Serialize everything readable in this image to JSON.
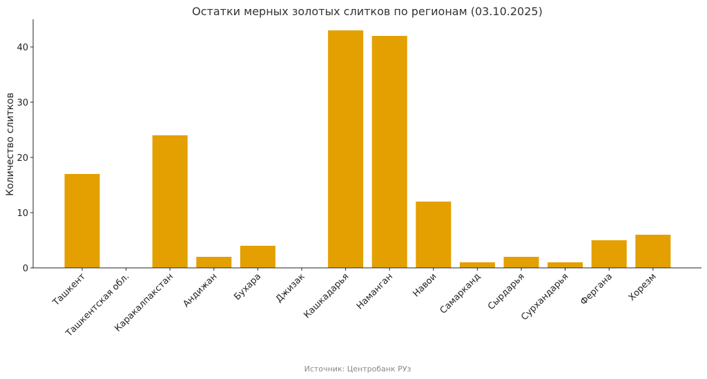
{
  "chart_data": {
    "type": "bar",
    "title": "Остатки мерных золотых слитков по регионам (03.10.2025)",
    "xlabel": "",
    "ylabel": "Количество слитков",
    "categories": [
      "Ташкент",
      "Ташкентская обл.",
      "Каракалпакстан",
      "Андижан",
      "Бухара",
      "Джизак",
      "Кашкадарья",
      "Наманган",
      "Навои",
      "Самарканд",
      "Сырдарья",
      "Сурхандарья",
      "Фергана",
      "Хорезм"
    ],
    "values": [
      17,
      0,
      24,
      2,
      4,
      0,
      43,
      42,
      12,
      1,
      2,
      1,
      5,
      6
    ],
    "ylim": [
      0,
      45
    ],
    "yticks": [
      0,
      10,
      20,
      30,
      40
    ],
    "grid": false,
    "legend": "none",
    "bar_color": "#e3a000"
  },
  "source": "Источник: Центробанк РУз"
}
